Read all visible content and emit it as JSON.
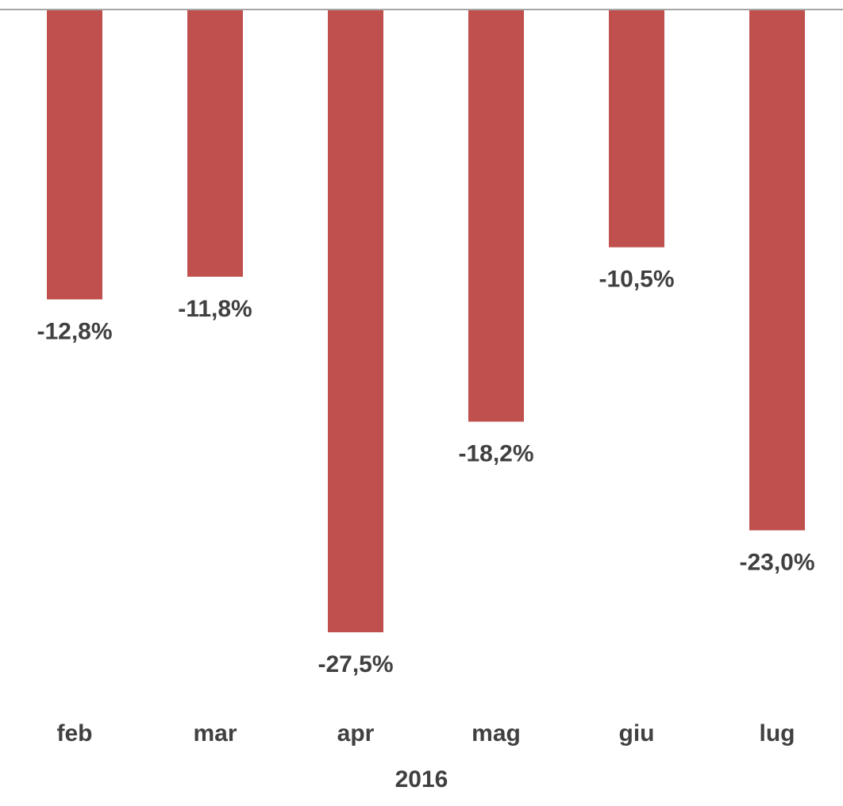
{
  "chart_data": {
    "type": "bar",
    "categories": [
      "feb",
      "mar",
      "apr",
      "mag",
      "giu",
      "lug"
    ],
    "values": [
      -12.8,
      -11.8,
      -27.5,
      -18.2,
      -10.5,
      -23.0
    ],
    "value_labels": [
      "-12,8%",
      "-11,8%",
      "-27,5%",
      "-18,2%",
      "-10,5%",
      "-23,0%"
    ],
    "color": "#c0504d",
    "xlabel": "2016",
    "ylim": [
      -27.5,
      0
    ]
  }
}
